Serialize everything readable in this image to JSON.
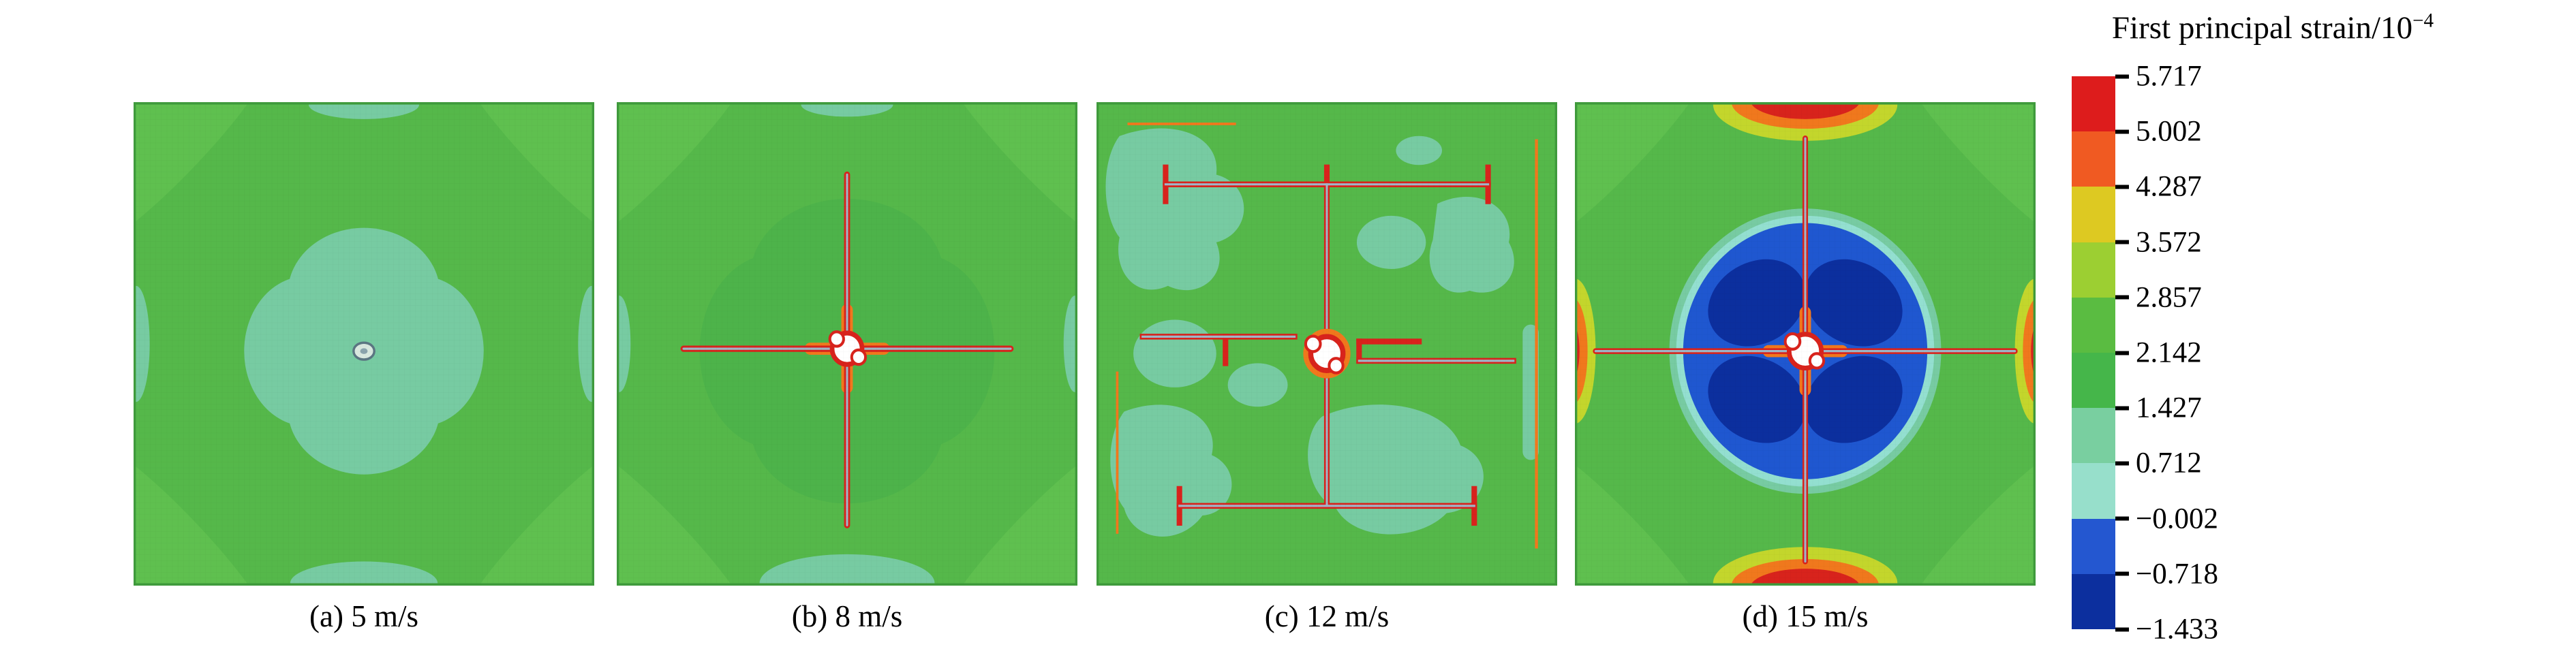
{
  "figure": {
    "colorbar_title_base": "First principal strain/10",
    "colorbar_title_exponent": "−4",
    "panels": [
      {
        "caption": "(a) 5 m/s"
      },
      {
        "caption": "(b) 8 m/s"
      },
      {
        "caption": "(c) 12 m/s"
      },
      {
        "caption": "(d) 15 m/s"
      }
    ]
  },
  "chart_data": {
    "type": "heatmap",
    "title": "First principal strain/10⁻⁴",
    "layout": {
      "panels_in_row": 4,
      "colorbar_position": "right",
      "colorbar_orientation": "vertical"
    },
    "colorbar": {
      "tick_labels": [
        "5.717",
        "5.002",
        "4.287",
        "3.572",
        "2.857",
        "2.142",
        "1.427",
        "0.712",
        "−0.002",
        "−0.718",
        "−1.433"
      ],
      "tick_values": [
        5.717,
        5.002,
        4.287,
        3.572,
        2.857,
        2.142,
        1.427,
        0.712,
        -0.002,
        -0.718,
        -1.433
      ],
      "band_colors": [
        "#dd1c1c",
        "#f05a22",
        "#ddc922",
        "#9ccf32",
        "#5abc41",
        "#45b64a",
        "#79cfa0",
        "#97dfcb",
        "#2457d0",
        "#0c2f9e"
      ]
    },
    "panels": [
      {
        "caption": "(a) 5 m/s",
        "impact_velocity": "5 m/s",
        "description": "Nearly uniform green field (~2×10⁻⁴) with a clover-shaped lower-strain teal zone around a small central impact point"
      },
      {
        "caption": "(b) 8 m/s",
        "impact_velocity": "8 m/s",
        "description": "Green field with a cross-shaped crack (red lines) radiating from a white central impact hole"
      },
      {
        "caption": "(c) 12 m/s",
        "impact_velocity": "12 m/s",
        "description": "Mottled green/teal field with branched crack network: central cross plus horizontal fractures near top and bottom edges"
      },
      {
        "caption": "(d) 15 m/s",
        "impact_velocity": "15 m/s",
        "description": "Large negative-strain blue circular zone with four dark-blue lobes at center; high-strain red/orange zones at edge midpoints"
      }
    ]
  },
  "palette": {
    "green-base": "#55b84a",
    "green-alt": "#4db34a",
    "green-corner": "#5fc04f",
    "teal": "#77cba2",
    "cyan": "#93dfd0",
    "blue": "#1f57d0",
    "blue-dark": "#0c2f9e",
    "red": "#d8231c",
    "orange": "#f0781d",
    "yellow": "#c3d62c",
    "line-grey": "#9fb6c8",
    "white": "#ffffff",
    "ink": "#000000"
  }
}
